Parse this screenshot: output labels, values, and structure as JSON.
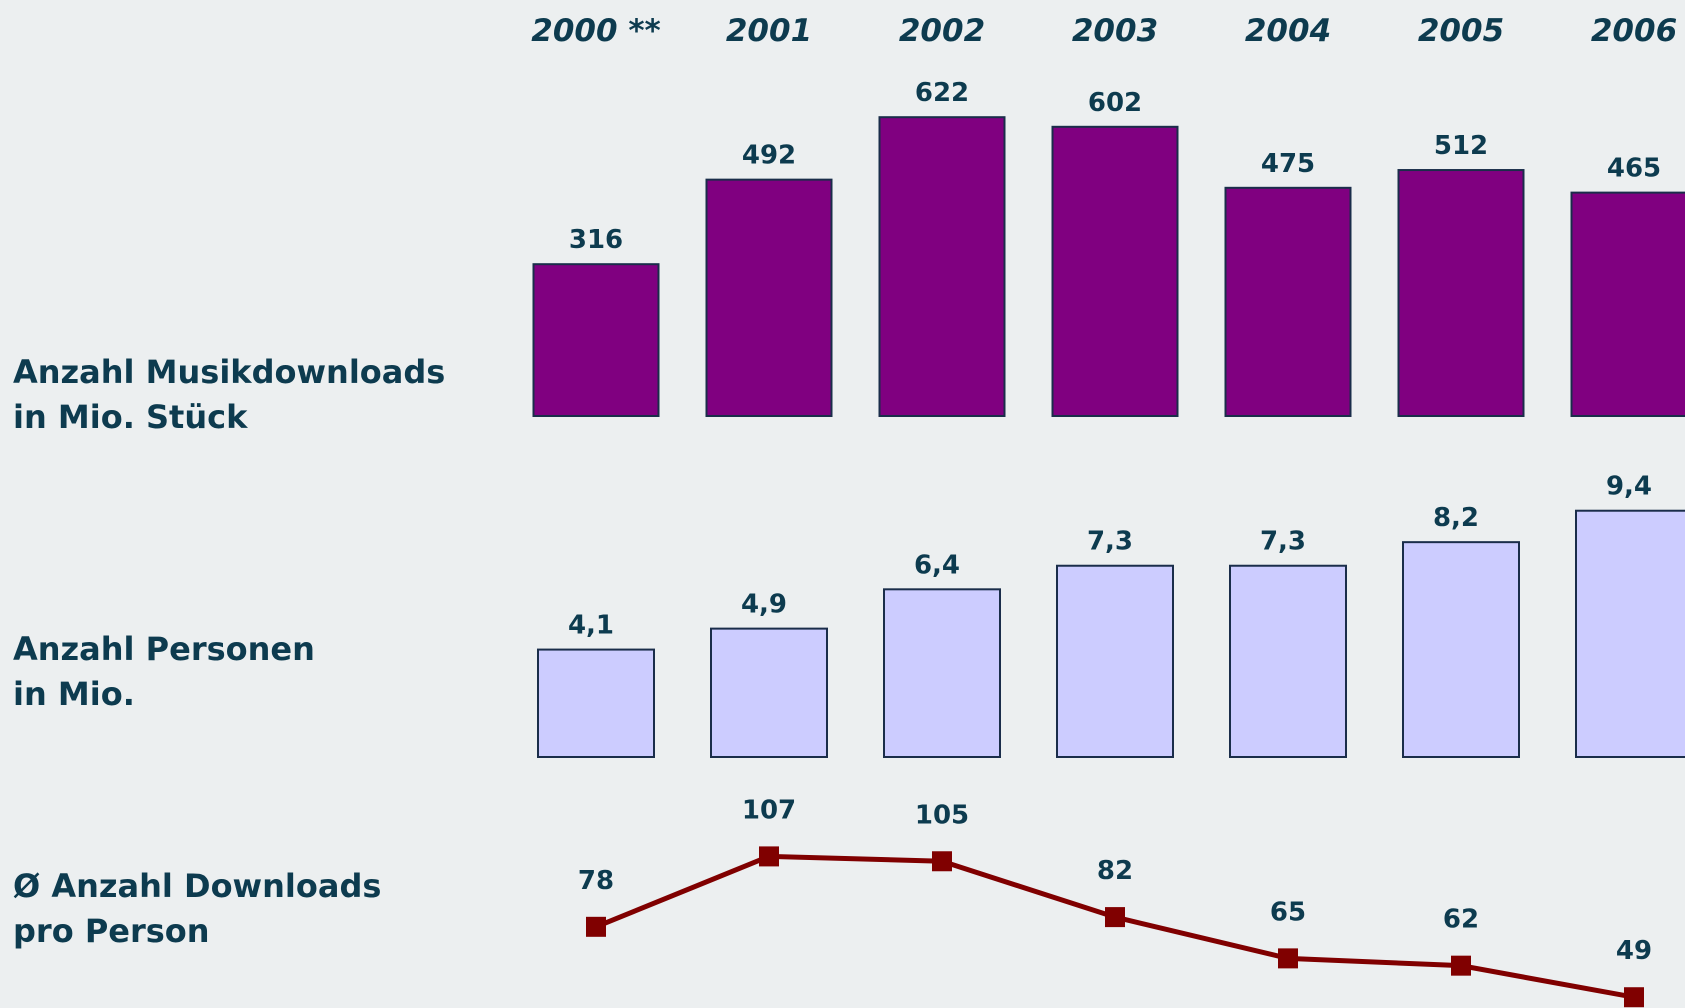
{
  "chart_data": [
    {
      "type": "bar",
      "label": [
        "Anzahl Musikdownloads",
        "in Mio. Stück"
      ],
      "categories": [
        "2000 **",
        "2001",
        "2002",
        "2003",
        "2004",
        "2005",
        "2006"
      ],
      "values": [
        316,
        492,
        622,
        602,
        475,
        512,
        465
      ],
      "color": "#800080"
    },
    {
      "type": "bar",
      "label": [
        "Anzahl Personen",
        "in Mio."
      ],
      "values": [
        4.1,
        4.9,
        6.4,
        7.3,
        7.3,
        8.2,
        9.4
      ],
      "value_labels": [
        "4,1",
        "4,9",
        "6,4",
        "7,3",
        "7,3",
        "8,2",
        "9,4"
      ],
      "color": "#ccccff"
    },
    {
      "type": "line",
      "label": [
        "Ø Anzahl Downloads",
        "pro Person"
      ],
      "values": [
        78,
        107,
        105,
        82,
        65,
        62,
        49
      ],
      "color": "#800000"
    }
  ]
}
